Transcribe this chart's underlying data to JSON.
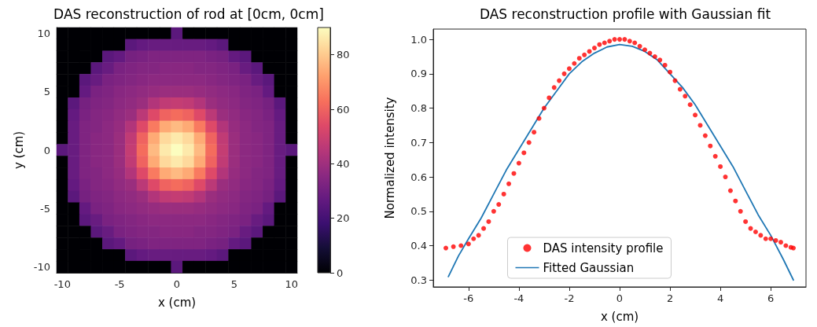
{
  "chart_data": [
    {
      "type": "heatmap",
      "title": "DAS reconstruction of rod at [0cm, 0cm]",
      "xlabel": "x (cm)",
      "ylabel": "y (cm)",
      "categories": [
        "-10",
        null,
        null,
        null,
        null,
        "-5",
        null,
        null,
        null,
        null,
        "0",
        null,
        null,
        null,
        null,
        "5",
        null,
        null,
        null,
        null,
        "10"
      ],
      "y_categories": [
        "10",
        null,
        null,
        null,
        null,
        "5",
        null,
        null,
        null,
        null,
        "0",
        null,
        null,
        null,
        null,
        "-5",
        null,
        null,
        null,
        null,
        "-10"
      ],
      "clim": [
        0,
        90
      ],
      "cticks": [
        0,
        20,
        40,
        60,
        80
      ],
      "cells": [
        [
          0,
          0,
          0,
          0,
          0,
          0,
          0,
          0,
          0,
          0,
          25,
          0,
          0,
          0,
          0,
          0,
          0,
          0,
          0,
          0,
          0
        ],
        [
          0,
          0,
          0,
          0,
          0,
          0,
          25,
          27,
          28,
          28,
          28,
          28,
          28,
          27,
          25,
          0,
          0,
          0,
          0,
          0,
          0
        ],
        [
          0,
          0,
          0,
          0,
          25,
          27,
          31,
          32,
          33,
          33,
          33,
          33,
          33,
          32,
          31,
          27,
          25,
          0,
          0,
          0,
          0
        ],
        [
          0,
          0,
          0,
          25,
          28,
          32,
          33,
          34,
          34,
          35,
          35,
          35,
          34,
          34,
          33,
          32,
          28,
          25,
          0,
          0,
          0
        ],
        [
          0,
          0,
          25,
          28,
          32,
          33,
          34,
          35,
          36,
          36,
          36,
          36,
          36,
          35,
          34,
          33,
          32,
          28,
          25,
          0,
          0
        ],
        [
          0,
          0,
          27,
          32,
          33,
          35,
          36,
          37,
          38,
          39,
          39,
          39,
          38,
          37,
          36,
          35,
          33,
          32,
          27,
          0,
          0
        ],
        [
          0,
          25,
          31,
          33,
          34,
          36,
          37,
          39,
          44,
          47,
          48,
          47,
          44,
          39,
          37,
          36,
          34,
          33,
          31,
          25,
          0
        ],
        [
          0,
          27,
          32,
          34,
          35,
          37,
          39,
          46,
          54,
          60,
          62,
          60,
          54,
          46,
          39,
          37,
          35,
          34,
          32,
          27,
          0
        ],
        [
          0,
          28,
          33,
          34,
          36,
          38,
          44,
          54,
          65,
          74,
          77,
          74,
          65,
          54,
          44,
          38,
          36,
          34,
          33,
          28,
          0
        ],
        [
          0,
          28,
          33,
          35,
          36,
          39,
          47,
          60,
          74,
          83,
          86,
          83,
          74,
          60,
          47,
          39,
          36,
          35,
          33,
          28,
          0
        ],
        [
          25,
          28,
          33,
          35,
          36,
          39,
          48,
          62,
          77,
          86,
          90,
          86,
          77,
          62,
          48,
          39,
          36,
          35,
          33,
          28,
          25
        ],
        [
          0,
          28,
          33,
          35,
          36,
          39,
          47,
          60,
          74,
          83,
          86,
          83,
          74,
          60,
          47,
          39,
          36,
          35,
          33,
          28,
          0
        ],
        [
          0,
          28,
          33,
          34,
          36,
          38,
          44,
          54,
          65,
          74,
          77,
          74,
          65,
          54,
          44,
          38,
          36,
          34,
          33,
          28,
          0
        ],
        [
          0,
          27,
          32,
          34,
          35,
          37,
          39,
          46,
          54,
          60,
          62,
          60,
          54,
          46,
          39,
          37,
          35,
          34,
          32,
          27,
          0
        ],
        [
          0,
          25,
          31,
          33,
          34,
          36,
          37,
          39,
          44,
          47,
          48,
          47,
          44,
          39,
          37,
          36,
          34,
          33,
          31,
          25,
          0
        ],
        [
          0,
          0,
          27,
          32,
          33,
          35,
          36,
          37,
          38,
          39,
          39,
          39,
          38,
          37,
          36,
          35,
          33,
          32,
          27,
          0,
          0
        ],
        [
          0,
          0,
          25,
          28,
          32,
          33,
          34,
          35,
          36,
          36,
          36,
          36,
          36,
          35,
          34,
          33,
          32,
          28,
          25,
          0,
          0
        ],
        [
          0,
          0,
          0,
          25,
          28,
          32,
          33,
          34,
          34,
          35,
          35,
          35,
          34,
          34,
          33,
          32,
          28,
          25,
          0,
          0,
          0
        ],
        [
          0,
          0,
          0,
          0,
          25,
          27,
          31,
          32,
          33,
          33,
          33,
          33,
          33,
          32,
          31,
          27,
          25,
          0,
          0,
          0,
          0
        ],
        [
          0,
          0,
          0,
          0,
          0,
          0,
          25,
          27,
          28,
          28,
          28,
          28,
          28,
          27,
          25,
          0,
          0,
          0,
          0,
          0,
          0
        ],
        [
          0,
          0,
          0,
          0,
          0,
          0,
          0,
          0,
          0,
          0,
          25,
          0,
          0,
          0,
          0,
          0,
          0,
          0,
          0,
          0,
          0
        ]
      ]
    },
    {
      "type": "scatter",
      "title": "DAS reconstruction profile with Gaussian fit",
      "xlabel": "x (cm)",
      "ylabel": "Normalized intensity",
      "xlim": [
        -7.4,
        7.4
      ],
      "xticks": [
        -6,
        -4,
        -2,
        0,
        2,
        4,
        6
      ],
      "ylim": [
        0.28,
        1.03
      ],
      "yticks": [
        0.3,
        0.4,
        0.5,
        0.6,
        0.7,
        0.8,
        0.9,
        {
          "value": 1,
          "label": "1.0"
        }
      ],
      "grid": false,
      "legend": "bottom",
      "series": [
        {
          "name": "DAS intensity profile",
          "type": "scatter",
          "marker": "circle",
          "color": "#ff0000",
          "x": [
            -6.9,
            -6.6,
            -6.3,
            -6.0,
            -5.8,
            -5.6,
            -5.4,
            -5.2,
            -5.0,
            -4.8,
            -4.6,
            -4.4,
            -4.2,
            -4.0,
            -3.8,
            -3.6,
            -3.4,
            -3.2,
            -3.0,
            -2.8,
            -2.6,
            -2.4,
            -2.2,
            -2.0,
            -1.8,
            -1.6,
            -1.4,
            -1.2,
            -1.0,
            -0.8,
            -0.6,
            -0.4,
            -0.2,
            0,
            0.2,
            0.4,
            0.6,
            0.8,
            1.0,
            1.2,
            1.4,
            1.6,
            1.8,
            2.0,
            2.2,
            2.4,
            2.6,
            2.8,
            3.0,
            3.2,
            3.4,
            3.6,
            3.8,
            4.0,
            4.2,
            4.4,
            4.6,
            4.8,
            5.0,
            5.2,
            5.4,
            5.6,
            5.8,
            6.0,
            6.2,
            6.4,
            6.6,
            6.8,
            6.9
          ],
          "values": [
            0.393,
            0.397,
            0.4,
            0.405,
            0.42,
            0.43,
            0.45,
            0.47,
            0.5,
            0.52,
            0.55,
            0.58,
            0.61,
            0.64,
            0.67,
            0.7,
            0.73,
            0.77,
            0.8,
            0.83,
            0.86,
            0.88,
            0.9,
            0.915,
            0.93,
            0.945,
            0.955,
            0.965,
            0.975,
            0.985,
            0.99,
            0.995,
            1.0,
            1.0,
            1.0,
            0.995,
            0.99,
            0.98,
            0.97,
            0.96,
            0.95,
            0.94,
            0.925,
            0.905,
            0.88,
            0.855,
            0.835,
            0.81,
            0.78,
            0.75,
            0.72,
            0.69,
            0.66,
            0.63,
            0.6,
            0.56,
            0.53,
            0.5,
            0.47,
            0.45,
            0.44,
            0.43,
            0.42,
            0.42,
            0.415,
            0.41,
            0.4,
            0.395,
            0.393
          ]
        },
        {
          "name": "Fitted Gaussian",
          "type": "line",
          "marker": "none",
          "line_style": "solid",
          "color": "#1f77b4",
          "x": [
            -6.8,
            -6.4,
            -6,
            -5.5,
            -5,
            -4.5,
            -4,
            -3.5,
            -3,
            -2.5,
            -2,
            -1.5,
            -1,
            -0.5,
            0,
            0.5,
            1,
            1.5,
            2,
            2.5,
            3,
            3.5,
            4,
            4.5,
            5,
            5.5,
            6,
            6.5,
            6.9
          ],
          "values": [
            0.31,
            0.37,
            0.42,
            0.48,
            0.55,
            0.62,
            0.68,
            0.74,
            0.8,
            0.85,
            0.9,
            0.935,
            0.96,
            0.978,
            0.985,
            0.98,
            0.965,
            0.94,
            0.9,
            0.86,
            0.81,
            0.75,
            0.69,
            0.63,
            0.56,
            0.49,
            0.43,
            0.36,
            0.3
          ]
        }
      ]
    }
  ]
}
